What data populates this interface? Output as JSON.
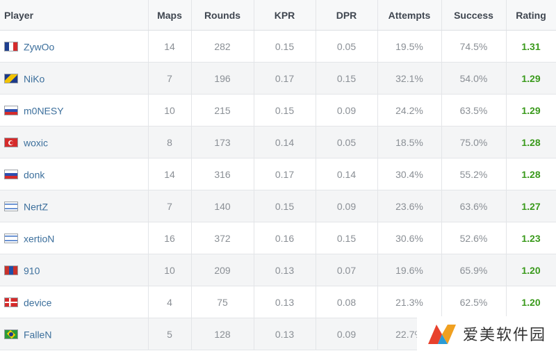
{
  "headers": {
    "player": "Player",
    "maps": "Maps",
    "rounds": "Rounds",
    "kpr": "KPR",
    "dpr": "DPR",
    "attempts": "Attempts",
    "success": "Success",
    "rating": "Rating"
  },
  "players": [
    {
      "name": "ZywOo",
      "flag": "france-flag-icon",
      "flag_colors": [
        "#1f3f8f",
        "#ffffff",
        "#d52b2b"
      ],
      "flag_dir": "v",
      "maps": "14",
      "rounds": "282",
      "kpr": "0.15",
      "dpr": "0.05",
      "attempts": "19.5%",
      "success": "74.5%",
      "rating": "1.31"
    },
    {
      "name": "NiKo",
      "flag": "bosnia-flag-icon",
      "flag_colors": [
        "#1d3a8a",
        "#f2c300"
      ],
      "flag_dir": "bosnia",
      "maps": "7",
      "rounds": "196",
      "kpr": "0.17",
      "dpr": "0.15",
      "attempts": "32.1%",
      "success": "54.0%",
      "rating": "1.29"
    },
    {
      "name": "m0NESY",
      "flag": "russia-flag-icon",
      "flag_colors": [
        "#ffffff",
        "#2d4fb0",
        "#d52b2b"
      ],
      "flag_dir": "h",
      "maps": "10",
      "rounds": "215",
      "kpr": "0.15",
      "dpr": "0.09",
      "attempts": "24.2%",
      "success": "63.5%",
      "rating": "1.29"
    },
    {
      "name": "woxic",
      "flag": "turkey-flag-icon",
      "flag_colors": [
        "#d52b2b"
      ],
      "flag_dir": "turkey",
      "maps": "8",
      "rounds": "173",
      "kpr": "0.14",
      "dpr": "0.05",
      "attempts": "18.5%",
      "success": "75.0%",
      "rating": "1.28"
    },
    {
      "name": "donk",
      "flag": "russia-flag-icon",
      "flag_colors": [
        "#ffffff",
        "#2d4fb0",
        "#d52b2b"
      ],
      "flag_dir": "h",
      "maps": "14",
      "rounds": "316",
      "kpr": "0.17",
      "dpr": "0.14",
      "attempts": "30.4%",
      "success": "55.2%",
      "rating": "1.28"
    },
    {
      "name": "NertZ",
      "flag": "israel-flag-icon",
      "flag_colors": [
        "#ffffff",
        "#3a6fc4"
      ],
      "flag_dir": "israel",
      "maps": "7",
      "rounds": "140",
      "kpr": "0.15",
      "dpr": "0.09",
      "attempts": "23.6%",
      "success": "63.6%",
      "rating": "1.27"
    },
    {
      "name": "xertioN",
      "flag": "israel-flag-icon",
      "flag_colors": [
        "#ffffff",
        "#3a6fc4"
      ],
      "flag_dir": "israel",
      "maps": "16",
      "rounds": "372",
      "kpr": "0.16",
      "dpr": "0.15",
      "attempts": "30.6%",
      "success": "52.6%",
      "rating": "1.23"
    },
    {
      "name": "910",
      "flag": "mongolia-flag-icon",
      "flag_colors": [
        "#c8312b",
        "#1f4fa8",
        "#c8312b"
      ],
      "flag_dir": "v",
      "maps": "10",
      "rounds": "209",
      "kpr": "0.13",
      "dpr": "0.07",
      "attempts": "19.6%",
      "success": "65.9%",
      "rating": "1.20"
    },
    {
      "name": "device",
      "flag": "denmark-flag-icon",
      "flag_colors": [
        "#d52b2b",
        "#ffffff"
      ],
      "flag_dir": "denmark",
      "maps": "4",
      "rounds": "75",
      "kpr": "0.13",
      "dpr": "0.08",
      "attempts": "21.3%",
      "success": "62.5%",
      "rating": "1.20"
    },
    {
      "name": "FalleN",
      "flag": "brazil-flag-icon",
      "flag_colors": [
        "#2a9a3a",
        "#f2d000",
        "#1d3a8a"
      ],
      "flag_dir": "brazil",
      "maps": "5",
      "rounds": "128",
      "kpr": "0.13",
      "dpr": "0.09",
      "attempts": "22.7%",
      "success": "",
      "rating": ""
    }
  ],
  "watermark": {
    "text": "爱美软件园",
    "icon": "watermark-logo-icon"
  }
}
